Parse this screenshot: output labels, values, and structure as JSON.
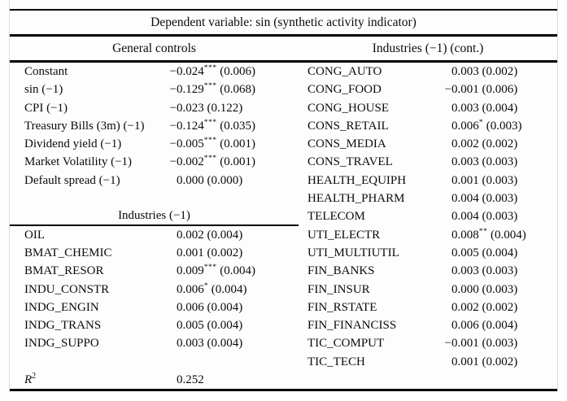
{
  "title": "Dependent variable: sin (synthetic activity indicator)",
  "left": {
    "header": "General controls",
    "general_rows": [
      {
        "label": "Constant",
        "coef": "−0.024",
        "stars": "***",
        "se": "0.006"
      },
      {
        "label": "sin (−1)",
        "coef": "−0.129",
        "stars": "***",
        "se": "0.068"
      },
      {
        "label": "CPI (−1)",
        "coef": "−0.023",
        "stars": "",
        "se": "0.122"
      },
      {
        "label": "Treasury Bills (3m) (−1)",
        "coef": "−0.124",
        "stars": "***",
        "se": "0.035"
      },
      {
        "label": "Dividend yield (−1)",
        "coef": "−0.005",
        "stars": "***",
        "se": "0.001"
      },
      {
        "label": "Market Volatility (−1)",
        "coef": "−0.002",
        "stars": "***",
        "se": "0.001"
      },
      {
        "label": "Default spread (−1)",
        "coef": "0.000",
        "stars": "",
        "se": "0.000"
      }
    ],
    "subheader": "Industries (−1)",
    "industry_rows": [
      {
        "label": "OIL",
        "coef": "0.002",
        "stars": "",
        "se": "0.004"
      },
      {
        "label": "BMAT_CHEMIC",
        "coef": "0.001",
        "stars": "",
        "se": "0.002"
      },
      {
        "label": "BMAT_RESOR",
        "coef": "0.009",
        "stars": "***",
        "se": "0.004"
      },
      {
        "label": "INDU_CONSTR",
        "coef": "0.006",
        "stars": "*",
        "se": "0.004"
      },
      {
        "label": "INDG_ENGIN",
        "coef": "0.006",
        "stars": "",
        "se": "0.004"
      },
      {
        "label": "INDG_TRANS",
        "coef": "0.005",
        "stars": "",
        "se": "0.004"
      },
      {
        "label": "INDG_SUPPO",
        "coef": "0.003",
        "stars": "",
        "se": "0.004"
      }
    ],
    "r2": {
      "label": "R",
      "sup": "2",
      "value": "0.252"
    }
  },
  "right": {
    "header": "Industries (−1) (cont.)",
    "rows": [
      {
        "label": "CONG_AUTO",
        "coef": "0.003",
        "stars": "",
        "se": "0.002"
      },
      {
        "label": "CONG_FOOD",
        "coef": "−0.001",
        "stars": "",
        "se": "0.006"
      },
      {
        "label": "CONG_HOUSE",
        "coef": "0.003",
        "stars": "",
        "se": "0.004"
      },
      {
        "label": "CONS_RETAIL",
        "coef": "0.006",
        "stars": "*",
        "se": "0.003"
      },
      {
        "label": "CONS_MEDIA",
        "coef": "0.002",
        "stars": "",
        "se": "0.002"
      },
      {
        "label": "CONS_TRAVEL",
        "coef": "0.003",
        "stars": "",
        "se": "0.003"
      },
      {
        "label": "HEALTH_EQUIPH",
        "coef": "0.001",
        "stars": "",
        "se": "0.003"
      },
      {
        "label": "HEALTH_PHARM",
        "coef": "0.004",
        "stars": "",
        "se": "0.003"
      },
      {
        "label": "TELECOM",
        "coef": "0.004",
        "stars": "",
        "se": "0.003"
      },
      {
        "label": "UTI_ELECTR",
        "coef": "0.008",
        "stars": "**",
        "se": "0.004"
      },
      {
        "label": "UTI_MULTIUTIL",
        "coef": "0.005",
        "stars": "",
        "se": "0.004"
      },
      {
        "label": "FIN_BANKS",
        "coef": "0.003",
        "stars": "",
        "se": "0.003"
      },
      {
        "label": "FIN_INSUR",
        "coef": "0.000",
        "stars": "",
        "se": "0.003"
      },
      {
        "label": "FIN_RSTATE",
        "coef": "0.002",
        "stars": "",
        "se": "0.002"
      },
      {
        "label": "FIN_FINANCISS",
        "coef": "0.006",
        "stars": "",
        "se": "0.004"
      },
      {
        "label": "TIC_COMPUT",
        "coef": "−0.001",
        "stars": "",
        "se": "0.003"
      },
      {
        "label": "TIC_TECH",
        "coef": "0.001",
        "stars": "",
        "se": "0.002"
      }
    ]
  }
}
